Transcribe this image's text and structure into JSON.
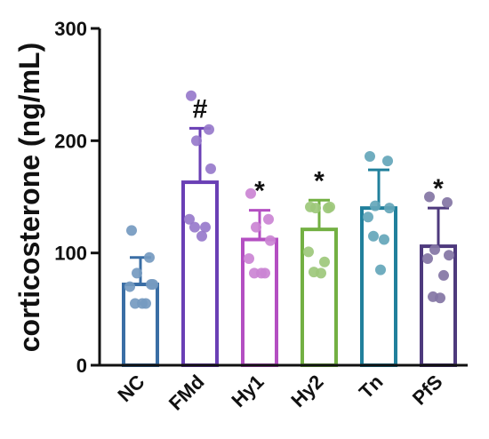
{
  "chart_data": {
    "type": "bar",
    "ylabel": "corticosterone (ng/mL)",
    "xlabel": "",
    "ylim": [
      0,
      300
    ],
    "yticks": [
      0,
      100,
      200,
      300
    ],
    "categories": [
      "NC",
      "FMd",
      "Hy1",
      "Hy2",
      "Tn",
      "PfS"
    ],
    "groups": [
      {
        "name": "NC",
        "mean": 72,
        "sd": 24,
        "annotation": "",
        "color": "#3a6ea5",
        "points": [
          120,
          96,
          82,
          72,
          70,
          55,
          55,
          55,
          72
        ]
      },
      {
        "name": "FMd",
        "mean": 163,
        "sd": 48,
        "annotation": "#",
        "color": "#6a3fb5",
        "points": [
          240,
          210,
          200,
          175,
          130,
          123,
          123,
          115
        ]
      },
      {
        "name": "Hy1",
        "mean": 112,
        "sd": 26,
        "annotation": "*",
        "color": "#b44fc2",
        "points": [
          153,
          130,
          123,
          111,
          95,
          82,
          82,
          82
        ]
      },
      {
        "name": "Hy2",
        "mean": 121,
        "sd": 26,
        "annotation": "*",
        "color": "#73b043",
        "points": [
          141,
          140,
          140,
          141,
          101,
          92,
          83,
          82
        ]
      },
      {
        "name": "Tn",
        "mean": 140,
        "sd": 34,
        "annotation": "",
        "color": "#21809c",
        "points": [
          186,
          182,
          142,
          140,
          132,
          112,
          115,
          85
        ]
      },
      {
        "name": "PfS",
        "mean": 106,
        "sd": 34,
        "annotation": "*",
        "color": "#4e3a7d",
        "points": [
          150,
          145,
          103,
          98,
          95,
          80,
          61,
          60
        ]
      }
    ]
  }
}
